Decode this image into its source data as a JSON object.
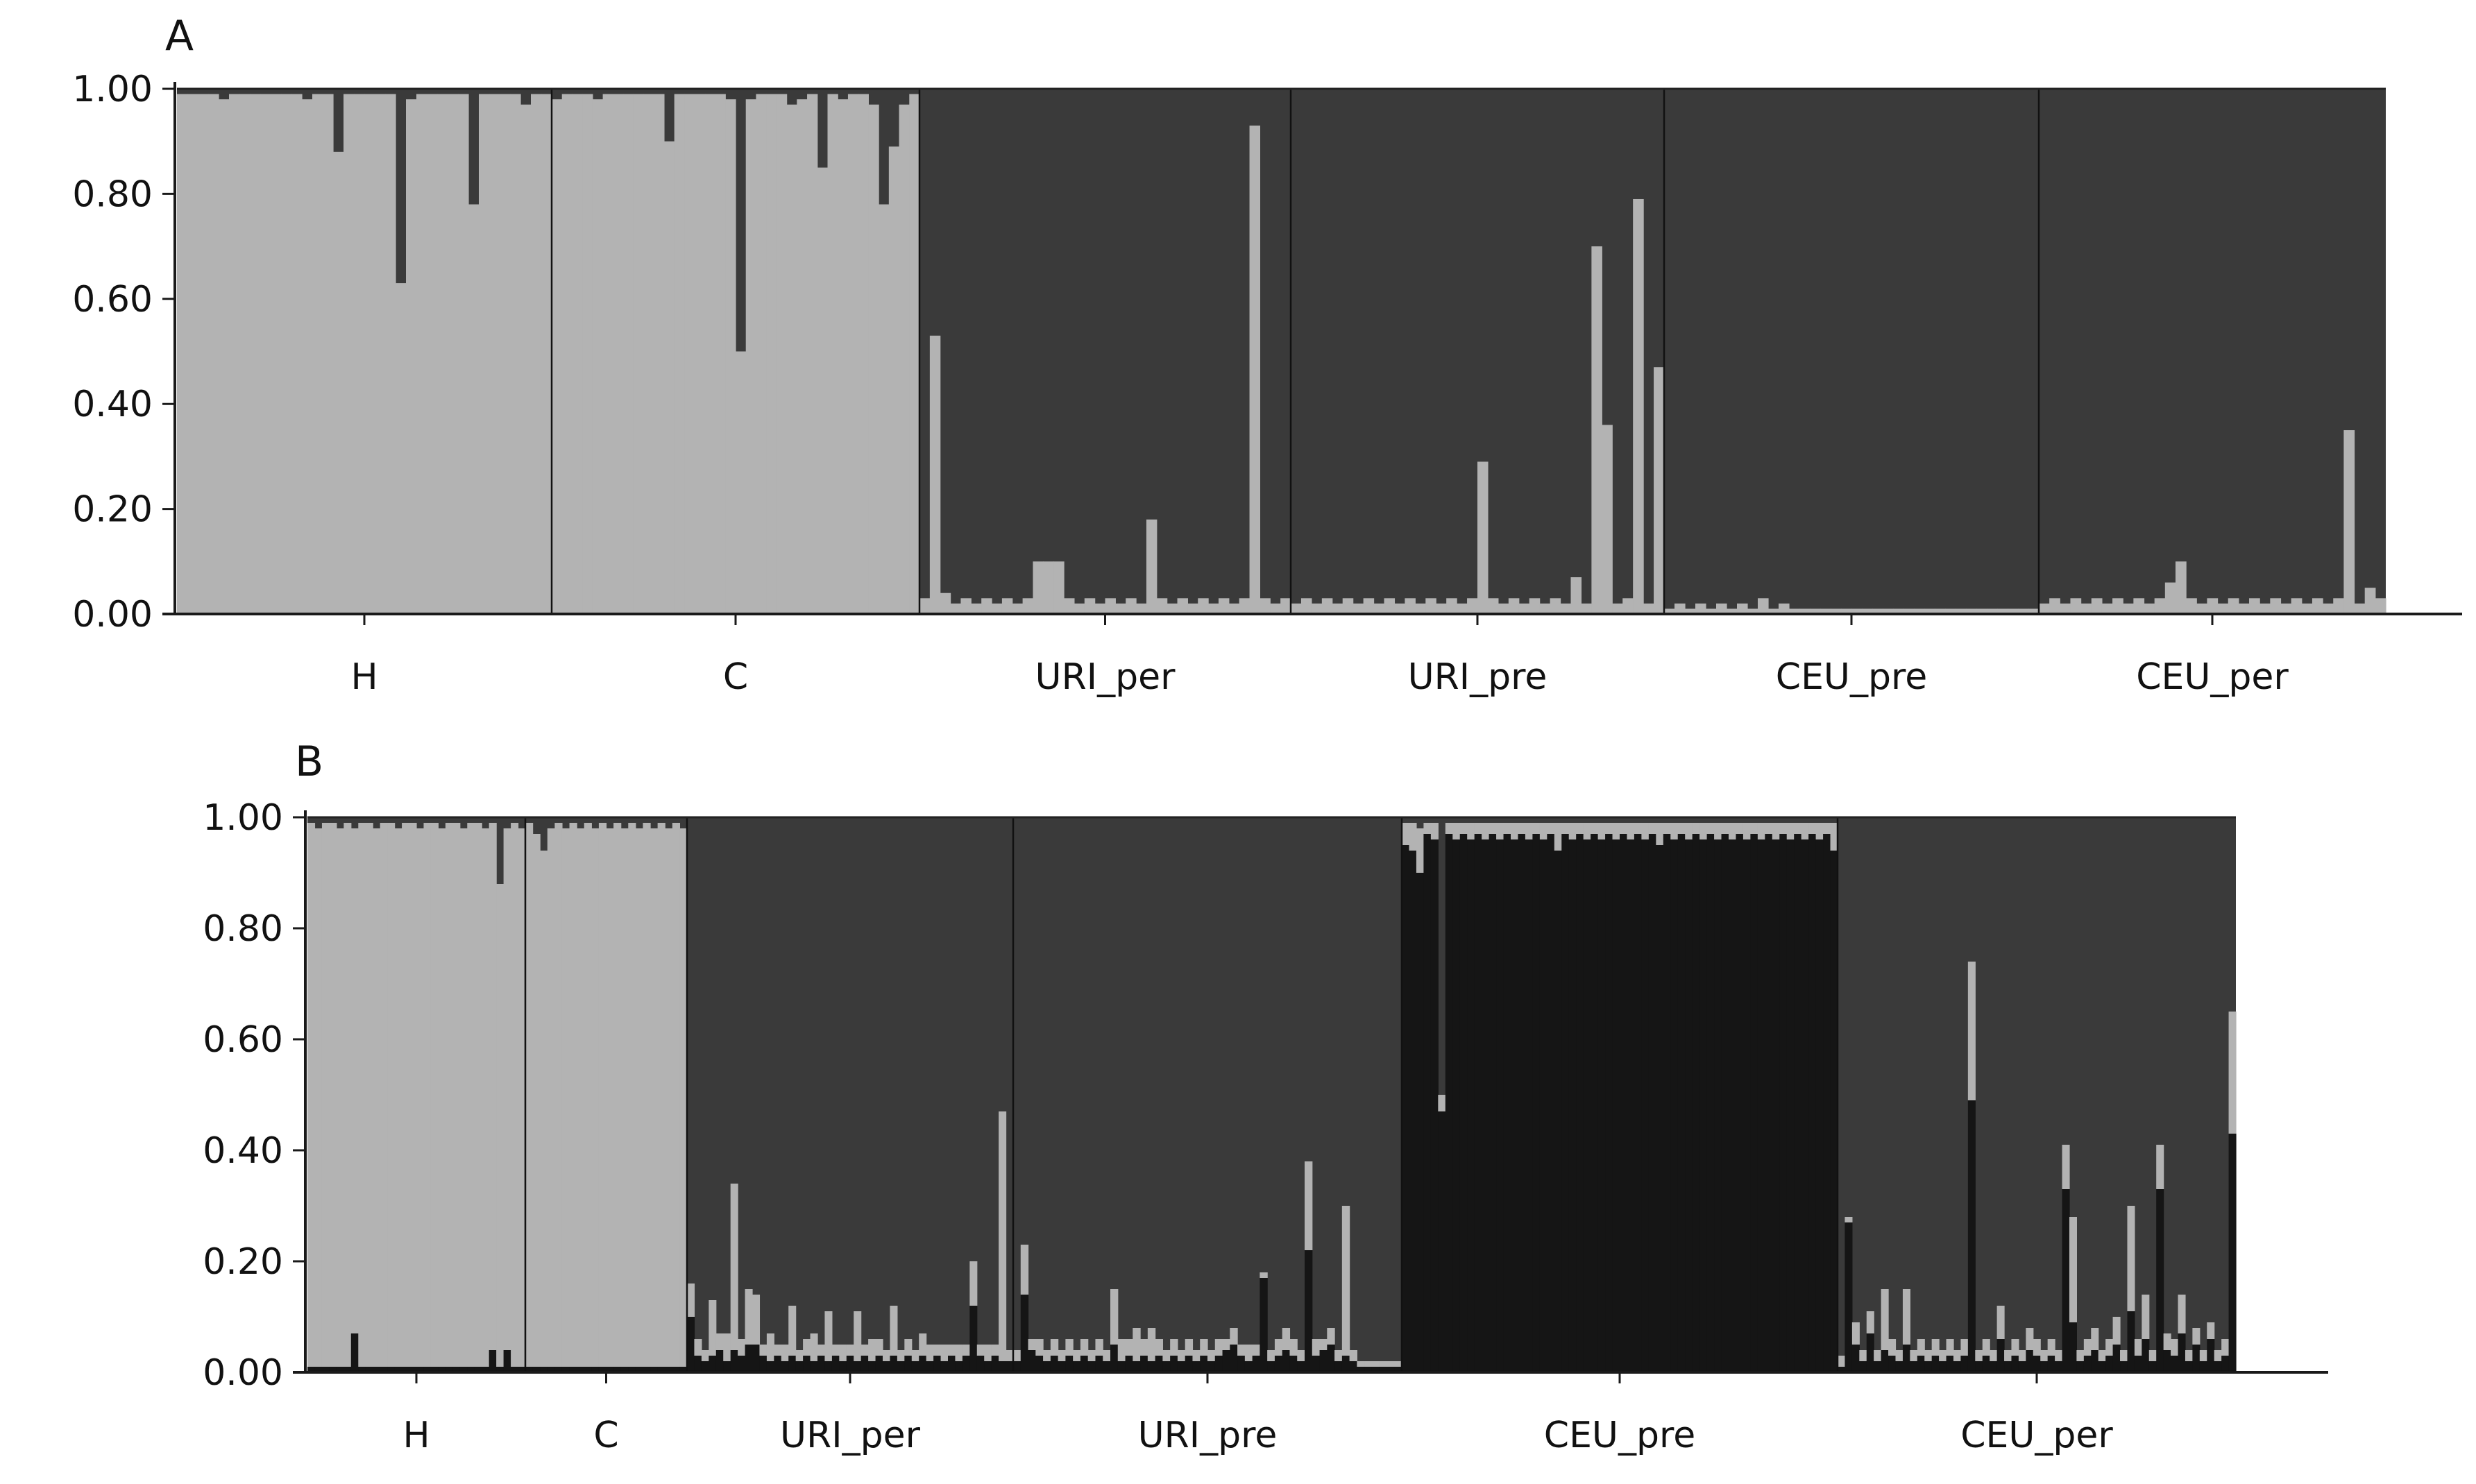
{
  "colors": {
    "cluster1_light": "#b3b3b3",
    "cluster2_dark": "#3a3a3a",
    "cluster3_black": "#151515",
    "axis": "#1a1a1a"
  },
  "chart_data": [
    {
      "type": "bar",
      "stacked": true,
      "panel": "A",
      "ylim": [
        0,
        1
      ],
      "yticks": [
        "0.00",
        "0.20",
        "0.40",
        "0.60",
        "0.80",
        "1.00"
      ],
      "categories": [
        "H",
        "C",
        "URI_per",
        "URI_pre",
        "CEU_pre",
        "CEU_per"
      ],
      "series": [
        {
          "color": "#b3b3b3",
          "groups": [
            {
              "label": "H",
              "n": 36,
              "values": [
                0.99,
                0.99,
                0.99,
                0.99,
                0.98,
                0.99,
                0.99,
                0.99,
                0.99,
                0.99,
                0.99,
                0.99,
                0.98,
                0.99,
                0.99,
                0.88,
                0.99,
                0.99,
                0.99,
                0.99,
                0.99,
                0.63,
                0.98,
                0.99,
                0.99,
                0.99,
                0.99,
                0.99,
                0.78,
                0.99,
                0.99,
                0.99,
                0.99,
                0.97,
                0.99,
                0.99
              ]
            },
            {
              "label": "C",
              "n": 36,
              "values": [
                0.98,
                0.99,
                0.99,
                0.99,
                0.98,
                0.99,
                0.99,
                0.99,
                0.99,
                0.99,
                0.99,
                0.9,
                0.99,
                0.99,
                0.99,
                0.99,
                0.99,
                0.98,
                0.5,
                0.98,
                0.99,
                0.99,
                0.99,
                0.97,
                0.98,
                0.99,
                0.85,
                0.99,
                0.98,
                0.99,
                0.99,
                0.97,
                0.78,
                0.89,
                0.97,
                0.99
              ]
            },
            {
              "label": "URI_per",
              "n": 36,
              "values": [
                0.03,
                0.53,
                0.04,
                0.02,
                0.03,
                0.02,
                0.03,
                0.02,
                0.03,
                0.02,
                0.03,
                0.1,
                0.1,
                0.1,
                0.03,
                0.02,
                0.03,
                0.02,
                0.03,
                0.02,
                0.03,
                0.02,
                0.18,
                0.03,
                0.02,
                0.03,
                0.02,
                0.03,
                0.02,
                0.03,
                0.02,
                0.03,
                0.93,
                0.03,
                0.02,
                0.03
              ]
            },
            {
              "label": "URI_pre",
              "n": 36,
              "values": [
                0.02,
                0.03,
                0.02,
                0.03,
                0.02,
                0.03,
                0.02,
                0.03,
                0.02,
                0.03,
                0.02,
                0.03,
                0.02,
                0.03,
                0.02,
                0.03,
                0.02,
                0.03,
                0.29,
                0.03,
                0.02,
                0.03,
                0.02,
                0.03,
                0.02,
                0.03,
                0.02,
                0.07,
                0.02,
                0.7,
                0.36,
                0.02,
                0.03,
                0.79,
                0.02,
                0.47
              ]
            },
            {
              "label": "CEU_pre",
              "n": 36,
              "values": [
                0.01,
                0.02,
                0.01,
                0.02,
                0.01,
                0.02,
                0.01,
                0.02,
                0.01,
                0.03,
                0.01,
                0.02,
                0.01,
                0.01,
                0.01,
                0.01,
                0.01,
                0.01,
                0.01,
                0.01,
                0.01,
                0.01,
                0.01,
                0.01,
                0.01,
                0.01,
                0.01,
                0.01,
                0.01,
                0.01,
                0.01,
                0.01,
                0.01,
                0.01,
                0.01,
                0.01
              ]
            },
            {
              "label": "CEU_per",
              "n": 33,
              "values": [
                0.02,
                0.03,
                0.02,
                0.03,
                0.02,
                0.03,
                0.02,
                0.03,
                0.02,
                0.03,
                0.02,
                0.03,
                0.06,
                0.1,
                0.03,
                0.02,
                0.03,
                0.02,
                0.03,
                0.02,
                0.03,
                0.02,
                0.03,
                0.02,
                0.03,
                0.02,
                0.03,
                0.02,
                0.03,
                0.35,
                0.02,
                0.05,
                0.03
              ]
            }
          ]
        }
      ]
    },
    {
      "type": "bar",
      "stacked": true,
      "panel": "B",
      "ylim": [
        0,
        1
      ],
      "yticks": [
        "0.00",
        "0.20",
        "0.40",
        "0.60",
        "0.80",
        "1.00"
      ],
      "categories": [
        "H",
        "C",
        "URI_per",
        "URI_pre",
        "CEU_pre",
        "CEU_per"
      ],
      "series": [
        {
          "color": "#151515",
          "groups": [
            {
              "label": "H",
              "n": 30,
              "values": [
                0.01,
                0.01,
                0.01,
                0.01,
                0.01,
                0.01,
                0.07,
                0.01,
                0.01,
                0.01,
                0.01,
                0.01,
                0.01,
                0.01,
                0.01,
                0.01,
                0.01,
                0.01,
                0.01,
                0.01,
                0.01,
                0.01,
                0.01,
                0.01,
                0.01,
                0.04,
                0.01,
                0.04,
                0.01,
                0.01
              ]
            },
            {
              "label": "C",
              "n": 22,
              "values": [
                0.01,
                0.01,
                0.01,
                0.01,
                0.01,
                0.01,
                0.01,
                0.01,
                0.01,
                0.01,
                0.01,
                0.01,
                0.01,
                0.01,
                0.01,
                0.01,
                0.01,
                0.01,
                0.01,
                0.01,
                0.01,
                0.01
              ]
            },
            {
              "label": "URI_per",
              "n": 45,
              "values": [
                0.1,
                0.03,
                0.02,
                0.03,
                0.04,
                0.02,
                0.04,
                0.03,
                0.05,
                0.05,
                0.03,
                0.02,
                0.03,
                0.02,
                0.03,
                0.02,
                0.03,
                0.02,
                0.03,
                0.02,
                0.03,
                0.02,
                0.03,
                0.02,
                0.03,
                0.02,
                0.03,
                0.02,
                0.03,
                0.02,
                0.03,
                0.02,
                0.03,
                0.02,
                0.03,
                0.02,
                0.03,
                0.02,
                0.03,
                0.12,
                0.03,
                0.02,
                0.03,
                0.02,
                0.02
              ]
            },
            {
              "label": "URI_pre",
              "n": 52,
              "values": [
                0.02,
                0.14,
                0.04,
                0.03,
                0.02,
                0.03,
                0.02,
                0.03,
                0.02,
                0.03,
                0.02,
                0.03,
                0.02,
                0.05,
                0.02,
                0.03,
                0.02,
                0.03,
                0.02,
                0.03,
                0.02,
                0.03,
                0.02,
                0.03,
                0.02,
                0.03,
                0.02,
                0.03,
                0.04,
                0.05,
                0.03,
                0.02,
                0.03,
                0.17,
                0.02,
                0.03,
                0.04,
                0.03,
                0.02,
                0.22,
                0.03,
                0.04,
                0.05,
                0.02,
                0.03,
                0.02,
                0.01,
                0.01,
                0.01,
                0.01,
                0.01,
                0.01
              ]
            },
            {
              "label": "CEU_pre",
              "n": 60,
              "values": [
                0.95,
                0.94,
                0.9,
                0.97,
                0.96,
                0.47,
                0.97,
                0.96,
                0.97,
                0.96,
                0.97,
                0.96,
                0.97,
                0.96,
                0.97,
                0.96,
                0.97,
                0.96,
                0.97,
                0.96,
                0.97,
                0.94,
                0.97,
                0.96,
                0.97,
                0.96,
                0.97,
                0.96,
                0.97,
                0.96,
                0.97,
                0.96,
                0.97,
                0.96,
                0.97,
                0.95,
                0.97,
                0.96,
                0.97,
                0.96,
                0.97,
                0.96,
                0.97,
                0.96,
                0.97,
                0.96,
                0.97,
                0.96,
                0.97,
                0.96,
                0.97,
                0.96,
                0.97,
                0.96,
                0.97,
                0.96,
                0.97,
                0.96,
                0.97,
                0.94
              ]
            },
            {
              "label": "CEU_per",
              "n": 55,
              "values": [
                0.01,
                0.27,
                0.05,
                0.02,
                0.07,
                0.02,
                0.04,
                0.03,
                0.02,
                0.05,
                0.02,
                0.03,
                0.02,
                0.03,
                0.02,
                0.03,
                0.02,
                0.03,
                0.49,
                0.02,
                0.03,
                0.02,
                0.06,
                0.02,
                0.03,
                0.02,
                0.04,
                0.03,
                0.02,
                0.03,
                0.02,
                0.33,
                0.09,
                0.02,
                0.03,
                0.04,
                0.02,
                0.03,
                0.05,
                0.02,
                0.11,
                0.03,
                0.06,
                0.02,
                0.33,
                0.04,
                0.03,
                0.07,
                0.02,
                0.05,
                0.02,
                0.06,
                0.02,
                0.03,
                0.43
              ]
            }
          ]
        },
        {
          "color": "#b3b3b3",
          "groups": [
            {
              "label": "H",
              "n": 30,
              "values": [
                0.98,
                0.97,
                0.98,
                0.98,
                0.97,
                0.98,
                0.91,
                0.98,
                0.98,
                0.97,
                0.98,
                0.98,
                0.97,
                0.98,
                0.98,
                0.97,
                0.98,
                0.98,
                0.97,
                0.98,
                0.98,
                0.97,
                0.98,
                0.98,
                0.97,
                0.95,
                0.87,
                0.94,
                0.98,
                0.97
              ]
            },
            {
              "label": "C",
              "n": 22,
              "values": [
                0.98,
                0.96,
                0.93,
                0.97,
                0.98,
                0.97,
                0.98,
                0.97,
                0.98,
                0.97,
                0.98,
                0.97,
                0.98,
                0.97,
                0.98,
                0.97,
                0.98,
                0.97,
                0.98,
                0.97,
                0.98,
                0.97
              ]
            },
            {
              "label": "URI_per",
              "n": 45,
              "values": [
                0.06,
                0.03,
                0.02,
                0.1,
                0.03,
                0.05,
                0.3,
                0.03,
                0.1,
                0.09,
                0.02,
                0.05,
                0.02,
                0.03,
                0.09,
                0.02,
                0.03,
                0.05,
                0.02,
                0.09,
                0.02,
                0.03,
                0.02,
                0.09,
                0.02,
                0.04,
                0.03,
                0.02,
                0.09,
                0.02,
                0.03,
                0.02,
                0.04,
                0.03,
                0.02,
                0.03,
                0.02,
                0.03,
                0.02,
                0.08,
                0.02,
                0.03,
                0.02,
                0.45,
                0.02
              ]
            },
            {
              "label": "URI_pre",
              "n": 52,
              "values": [
                0.02,
                0.09,
                0.02,
                0.03,
                0.02,
                0.03,
                0.02,
                0.03,
                0.02,
                0.03,
                0.02,
                0.03,
                0.02,
                0.1,
                0.04,
                0.03,
                0.06,
                0.03,
                0.06,
                0.03,
                0.02,
                0.03,
                0.02,
                0.03,
                0.02,
                0.03,
                0.02,
                0.03,
                0.02,
                0.03,
                0.02,
                0.03,
                0.02,
                0.01,
                0.02,
                0.03,
                0.04,
                0.03,
                0.02,
                0.16,
                0.03,
                0.02,
                0.03,
                0.02,
                0.27,
                0.02,
                0.01,
                0.01,
                0.01,
                0.01,
                0.01,
                0.01
              ]
            },
            {
              "label": "CEU_pre",
              "n": 60,
              "values": [
                0.04,
                0.05,
                0.08,
                0.02,
                0.03,
                0.03,
                0.02,
                0.03,
                0.02,
                0.03,
                0.02,
                0.03,
                0.02,
                0.03,
                0.02,
                0.03,
                0.02,
                0.03,
                0.02,
                0.03,
                0.02,
                0.05,
                0.02,
                0.03,
                0.02,
                0.03,
                0.02,
                0.03,
                0.02,
                0.03,
                0.02,
                0.03,
                0.02,
                0.03,
                0.02,
                0.04,
                0.02,
                0.03,
                0.02,
                0.03,
                0.02,
                0.03,
                0.02,
                0.03,
                0.02,
                0.03,
                0.02,
                0.03,
                0.02,
                0.03,
                0.02,
                0.03,
                0.02,
                0.03,
                0.02,
                0.03,
                0.02,
                0.03,
                0.02,
                0.05
              ]
            },
            {
              "label": "CEU_per",
              "n": 55,
              "values": [
                0.02,
                0.01,
                0.04,
                0.02,
                0.04,
                0.02,
                0.11,
                0.03,
                0.02,
                0.1,
                0.02,
                0.03,
                0.02,
                0.03,
                0.02,
                0.03,
                0.02,
                0.03,
                0.25,
                0.02,
                0.03,
                0.02,
                0.06,
                0.02,
                0.03,
                0.02,
                0.04,
                0.03,
                0.02,
                0.03,
                0.02,
                0.08,
                0.19,
                0.02,
                0.03,
                0.04,
                0.02,
                0.03,
                0.05,
                0.02,
                0.19,
                0.03,
                0.08,
                0.02,
                0.08,
                0.03,
                0.03,
                0.07,
                0.02,
                0.03,
                0.02,
                0.03,
                0.02,
                0.03,
                0.22
              ]
            }
          ]
        }
      ]
    }
  ],
  "panels": [
    {
      "letter": "A"
    },
    {
      "letter": "B"
    }
  ]
}
